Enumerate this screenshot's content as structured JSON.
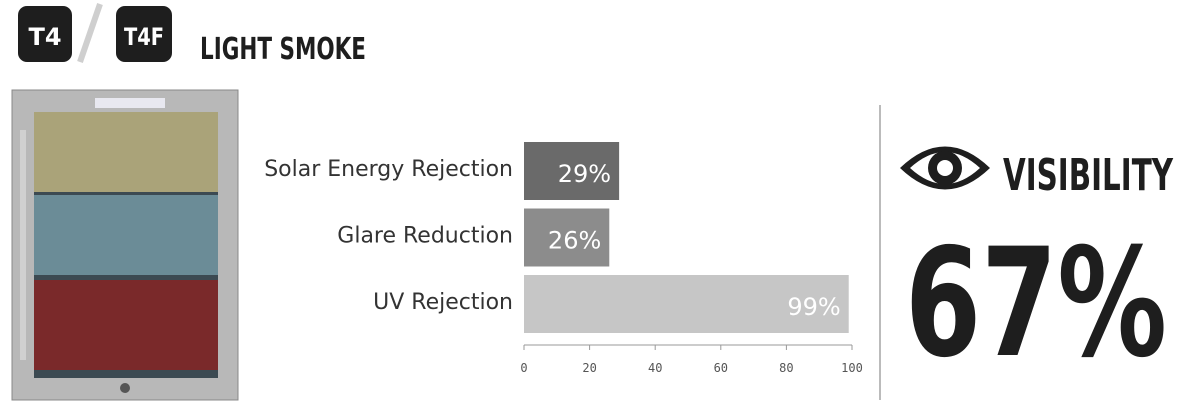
{
  "header": {
    "badges": [
      "T4",
      "T4F"
    ],
    "title": "LIGHT SMOKE"
  },
  "visibility": {
    "label": "VISIBILITY",
    "value": "67%"
  },
  "chart_data": {
    "type": "hbar",
    "categories": [
      "Solar Energy Rejection",
      "Glare Reduction",
      "UV Rejection"
    ],
    "values": [
      29,
      26,
      99
    ],
    "value_labels": [
      "29%",
      "26%",
      "99%"
    ],
    "colors": [
      "#6a6a6a",
      "#8c8c8c",
      "#c6c6c6"
    ],
    "xlim": [
      0,
      100
    ],
    "xticks": [
      0,
      20,
      40,
      60,
      80,
      100
    ]
  }
}
